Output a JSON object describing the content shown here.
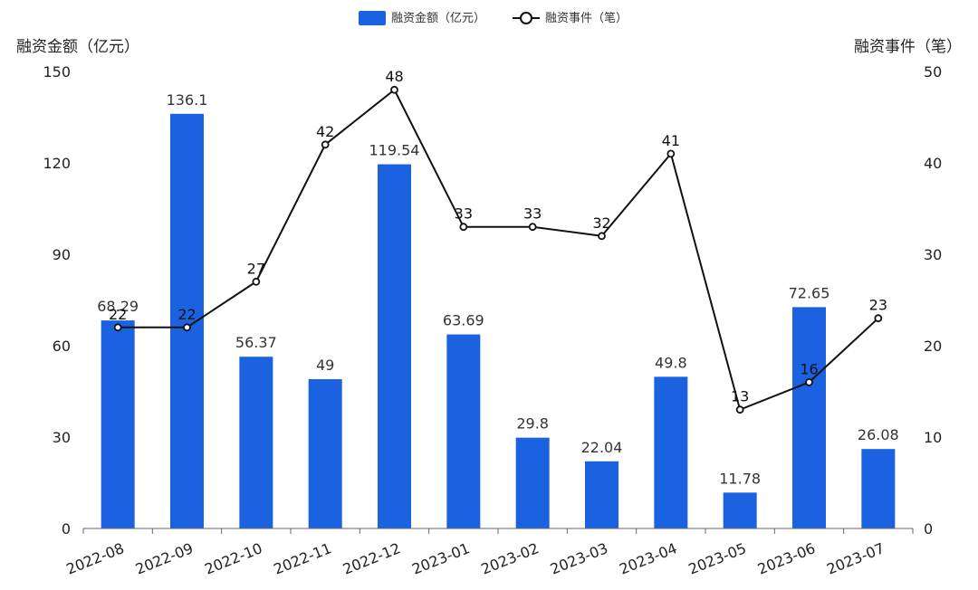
{
  "chart_data": {
    "type": "bar",
    "title": "",
    "categories": [
      "2022-08",
      "2022-09",
      "2022-10",
      "2022-11",
      "2022-12",
      "2023-01",
      "2023-02",
      "2023-03",
      "2023-04",
      "2023-05",
      "2023-06",
      "2023-07"
    ],
    "series": [
      {
        "name": "融资金额（亿元）",
        "type": "bar",
        "axis": "left",
        "color": "#1b62e0",
        "values": [
          68.29,
          136.1,
          56.37,
          49,
          119.54,
          63.69,
          29.8,
          22.04,
          49.8,
          11.78,
          72.65,
          26.08
        ]
      },
      {
        "name": "融资事件（笔）",
        "type": "line",
        "axis": "right",
        "color": "#111111",
        "values": [
          22,
          22,
          27,
          42,
          48,
          33,
          33,
          32,
          41,
          13,
          16,
          23
        ]
      }
    ],
    "left_axis": {
      "label": "融资金额（亿元）",
      "ylim": [
        0,
        150
      ],
      "ticks": [
        0,
        30,
        60,
        90,
        120,
        150
      ]
    },
    "right_axis": {
      "label": "融资事件（笔）",
      "ylim": [
        0,
        50
      ],
      "ticks": [
        0,
        10,
        20,
        30,
        40,
        50
      ]
    },
    "legend_placement": "top-center",
    "grid": false
  }
}
